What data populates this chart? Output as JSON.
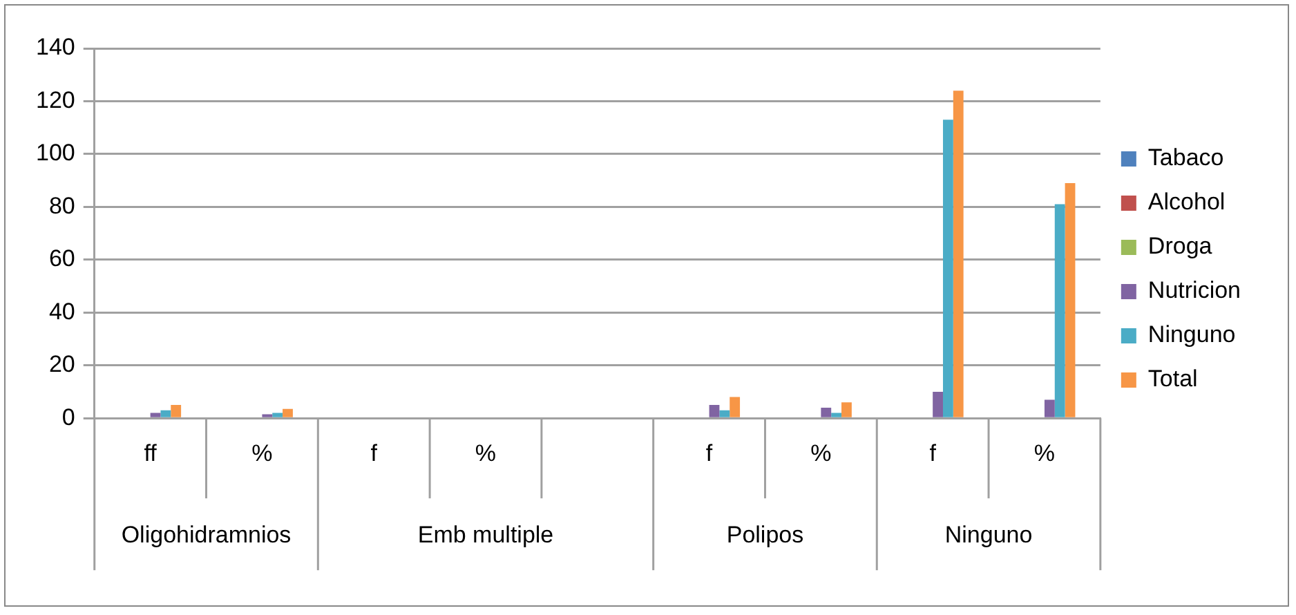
{
  "chart_data": {
    "type": "bar",
    "categories": [
      "ff",
      "%",
      "f",
      "%",
      null,
      "f",
      "%",
      "f",
      "%"
    ],
    "series": [
      {
        "name": "Tabaco",
        "color": "#4f81bd",
        "values": [
          0,
          0,
          0,
          0,
          0,
          0,
          0,
          0,
          0
        ]
      },
      {
        "name": "Alcohol",
        "color": "#c0504d",
        "values": [
          0,
          0,
          0,
          0,
          0,
          0,
          0,
          0,
          0
        ]
      },
      {
        "name": "Droga",
        "color": "#9bbb59",
        "values": [
          0,
          0,
          0,
          0,
          0,
          0,
          0,
          0,
          0
        ]
      },
      {
        "name": "Nutricion",
        "color": "#8064a2",
        "values": [
          2,
          1.5,
          0,
          0,
          0,
          5,
          4,
          10,
          7
        ]
      },
      {
        "name": "Ninguno",
        "color": "#4bacc6",
        "values": [
          3,
          2,
          0,
          0,
          0,
          3,
          2,
          113,
          81
        ]
      },
      {
        "name": "Total",
        "color": "#f79646",
        "values": [
          5,
          3.5,
          0,
          0,
          0,
          8,
          6,
          124,
          89
        ]
      }
    ],
    "annotations": [
      "Oligohidramnios",
      "Emb multiple",
      "Polipos",
      "Ninguno"
    ],
    "ylim": [
      0,
      140
    ],
    "yticks": [
      0,
      20,
      40,
      60,
      80,
      100,
      120,
      140
    ],
    "grid": "y",
    "legend": "right"
  }
}
